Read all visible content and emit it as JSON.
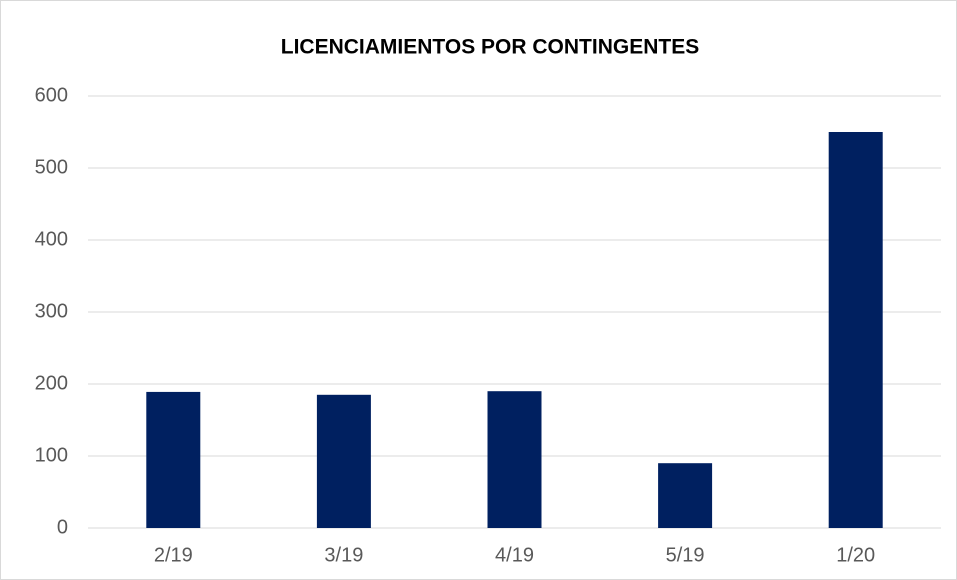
{
  "chart_data": {
    "type": "bar",
    "title": "LICENCIAMIENTOS POR CONTINGENTES",
    "categories": [
      "2/19",
      "3/19",
      "4/19",
      "5/19",
      "1/20"
    ],
    "values": [
      189,
      185,
      190,
      90,
      550
    ],
    "color": "#002060",
    "ylim": [
      0,
      600
    ],
    "yticks": [
      0,
      100,
      200,
      300,
      400,
      500,
      600
    ],
    "grid": true
  }
}
